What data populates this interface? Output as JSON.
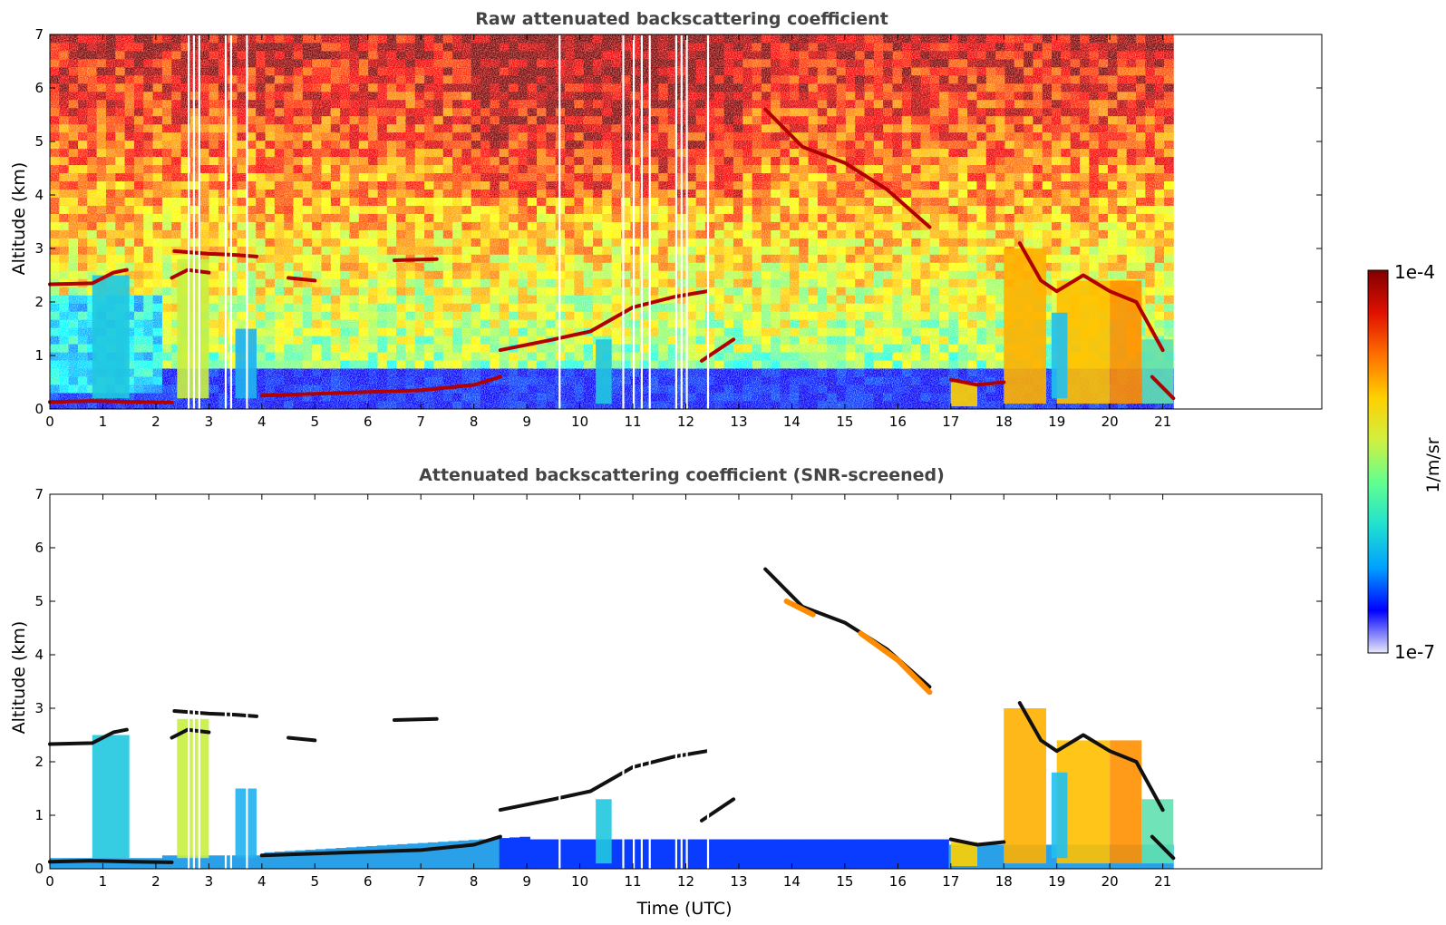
{
  "chart_data": [
    {
      "type": "heatmap",
      "title": "Raw attenuated backscattering coefficient",
      "xlabel": "",
      "ylabel": "Altitude (km)",
      "xlim": [
        0,
        24
      ],
      "ylim": [
        0,
        7
      ],
      "xticks": [
        "0",
        "1",
        "2",
        "3",
        "4",
        "5",
        "6",
        "7",
        "8",
        "9",
        "10",
        "11",
        "12",
        "13",
        "14",
        "15",
        "16",
        "17",
        "18",
        "19",
        "20",
        "21"
      ],
      "yticks": [
        "0",
        "1",
        "2",
        "3",
        "4",
        "5",
        "6",
        "7"
      ],
      "data_end_time": 21.2,
      "layers": [
        {
          "t0": 0.0,
          "t1": 2.3,
          "alt": 0.12,
          "level": "very high"
        },
        {
          "t0": 0.0,
          "t1": 1.4,
          "alt": 2.35,
          "level": "high"
        },
        {
          "t0": 2.3,
          "t1": 3.8,
          "alt": 2.85,
          "level": "very high"
        },
        {
          "t0": 4.0,
          "t1": 8.5,
          "alt": 0.28,
          "level": "high"
        },
        {
          "t0": 8.3,
          "t1": 12.5,
          "alt": 1.5,
          "level": "very high"
        },
        {
          "t0": 13.5,
          "t1": 16.6,
          "alt": 4.3,
          "level": "high"
        },
        {
          "t0": 17.0,
          "t1": 18.0,
          "alt": 0.5,
          "level": "very high"
        },
        {
          "t0": 18.2,
          "t1": 21.2,
          "alt": 2.3,
          "level": "very high"
        }
      ]
    },
    {
      "type": "heatmap",
      "title": "Attenuated backscattering coefficient (SNR-screened)",
      "xlabel": "Time (UTC)",
      "ylabel": "Altitude (km)",
      "xlim": [
        0,
        24
      ],
      "ylim": [
        0,
        7
      ],
      "xticks": [
        "0",
        "1",
        "2",
        "3",
        "4",
        "5",
        "6",
        "7",
        "8",
        "9",
        "10",
        "11",
        "12",
        "13",
        "14",
        "15",
        "16",
        "17",
        "18",
        "19",
        "20",
        "21"
      ],
      "yticks": [
        "0",
        "1",
        "2",
        "3",
        "4",
        "5",
        "6",
        "7"
      ],
      "data_end_time": 21.2,
      "screened": true
    }
  ],
  "colorbar": {
    "label": "1/m/sr",
    "max_label": "1e-4",
    "min_label": "1e-7",
    "colormap": "jet",
    "colors": [
      "#e8e8f8",
      "#0000ff",
      "#00a0ff",
      "#20e0d0",
      "#60ff90",
      "#d0f040",
      "#ffd000",
      "#ff7000",
      "#e01000",
      "#800000"
    ]
  }
}
